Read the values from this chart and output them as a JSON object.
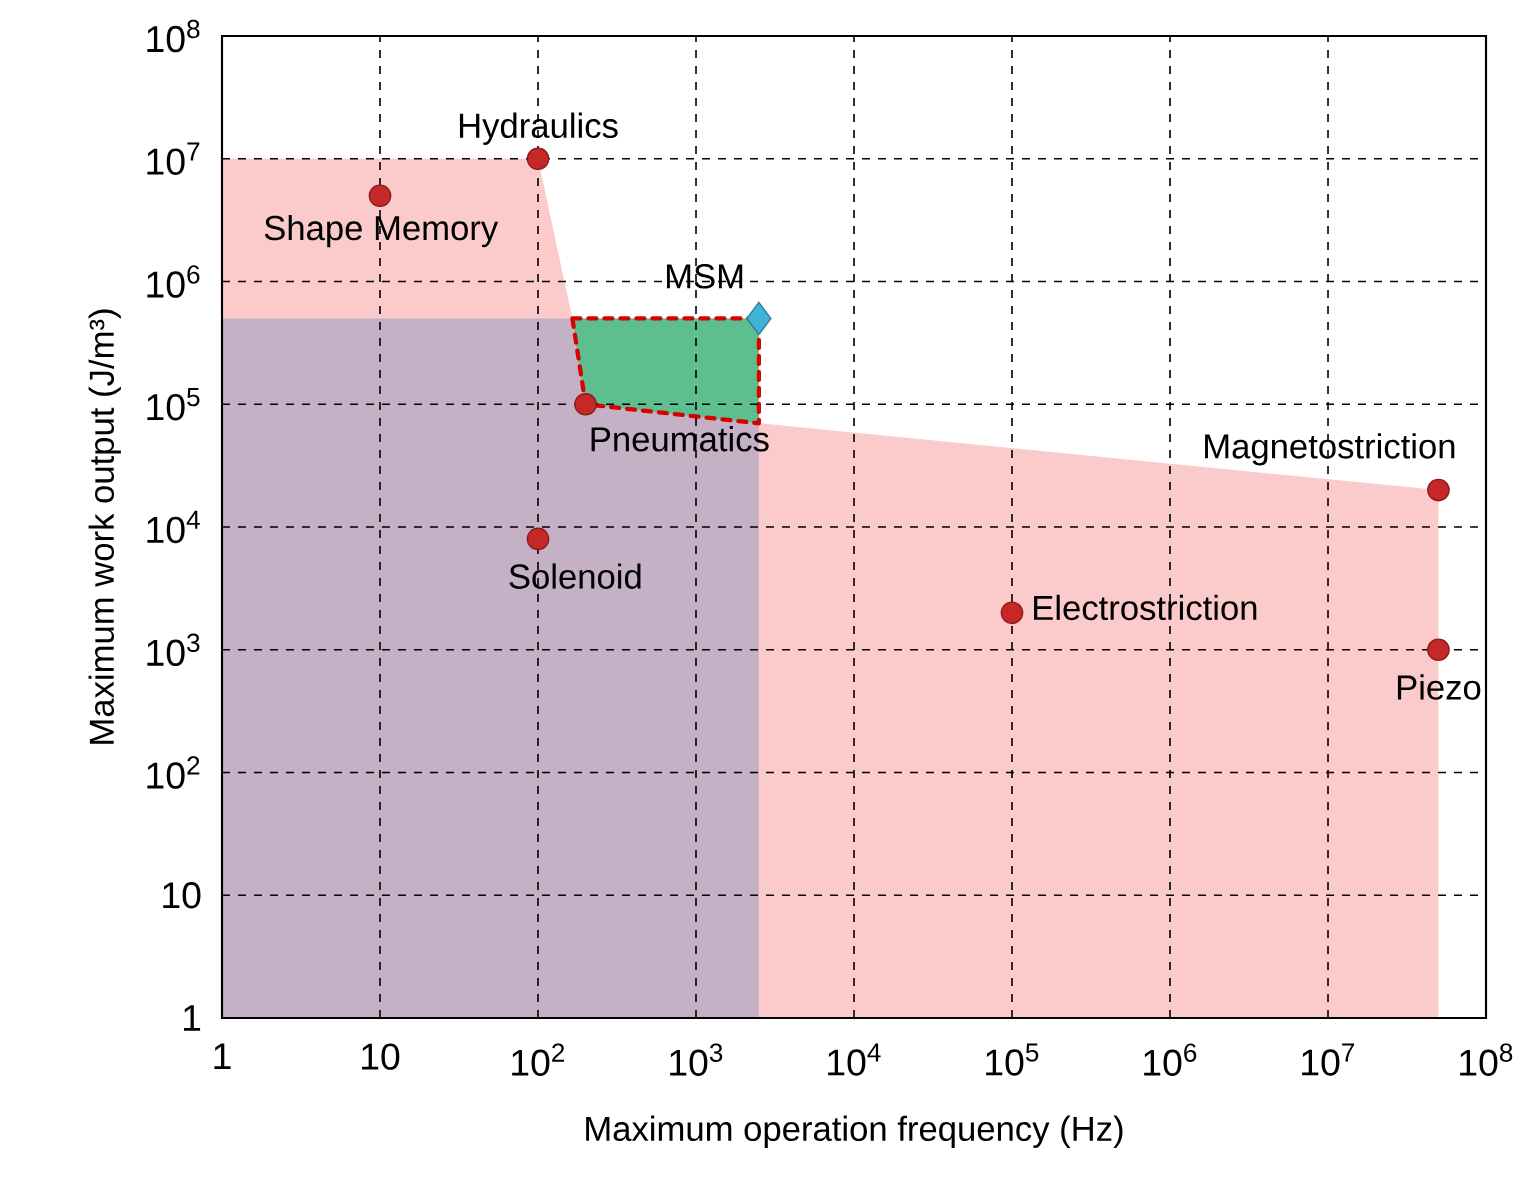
{
  "chart_data": {
    "type": "scatter",
    "xlabel": "Maximum operation frequency (Hz)",
    "ylabel": "Maximum work output (J/m³)",
    "log": "xy",
    "grid": true,
    "xlim": [
      1,
      100000000
    ],
    "ylim": [
      1,
      100000000
    ],
    "xticks": [
      1,
      10,
      {
        "value": 100,
        "label": "10$^{2}$"
      },
      {
        "value": 1000,
        "label": "10$^{3}$"
      },
      {
        "value": 10000,
        "label": "10$^{4}$"
      },
      {
        "value": 100000,
        "label": "10$^{5}$"
      },
      {
        "value": 1000000,
        "label": "10$^{6}$"
      },
      {
        "value": 10000000,
        "label": "10$^{7}$"
      },
      {
        "value": 100000000,
        "label": "10$^{8}$"
      }
    ],
    "yticks": [
      1,
      10,
      {
        "value": 100,
        "label": "10$^{2}$"
      },
      {
        "value": 1000,
        "label": "10$^{3}$"
      },
      {
        "value": 10000,
        "label": "10$^{4}$"
      },
      {
        "value": 100000,
        "label": "10$^{5}$"
      },
      {
        "value": 1000000,
        "label": "10$^{6}$"
      },
      {
        "value": 10000000,
        "label": "10$^{7}$"
      },
      {
        "value": 100000000,
        "label": "10$^{8}$"
      }
    ],
    "series": [
      {
        "type": "area",
        "color": "#fbcaca",
        "x": [
          1,
          100,
          165,
          2500,
          50000000
        ],
        "values": [
          10000000,
          10000000,
          500000,
          70000,
          20000
        ]
      },
      {
        "type": "area",
        "color": "#c4b1c6",
        "x": [
          1,
          2500
        ],
        "values": [
          500000,
          500000
        ]
      },
      {
        "type": "area",
        "color": "#5dbf8f",
        "line_style": "dashed",
        "x": [
          165,
          2500,
          2500,
          200,
          165
        ],
        "values": [
          500000,
          500000,
          70000,
          100000,
          500000
        ]
      },
      {
        "color": "#c62828",
        "marker": "circle",
        "x": [
          10,
          100,
          200,
          100,
          100000,
          50000000,
          50000000
        ],
        "values": [
          5000000,
          10000000,
          100000,
          8000,
          2000,
          20000,
          1000
        ]
      },
      {
        "color": "#3fb3d9",
        "marker": "diamond",
        "x": [
          2500
        ],
        "values": [
          500000
        ]
      }
    ],
    "annotations": [
      {
        "text": "Hydraulics",
        "x": 100,
        "y": 10000000
      },
      {
        "text": "Shape Memory",
        "x": 10,
        "y": 5000000
      },
      {
        "text": "MSM",
        "x": 2500,
        "y": 500000
      },
      {
        "text": "Pneumatics",
        "x": 200,
        "y": 100000
      },
      {
        "text": "Solenoid",
        "x": 100,
        "y": 8000
      },
      {
        "text": "Electrostriction",
        "x": 100000,
        "y": 2000
      },
      {
        "text": "Magnetostriction",
        "x": 50000000,
        "y": 20000
      },
      {
        "text": "Piezo",
        "x": 50000000,
        "y": 1000
      }
    ]
  }
}
